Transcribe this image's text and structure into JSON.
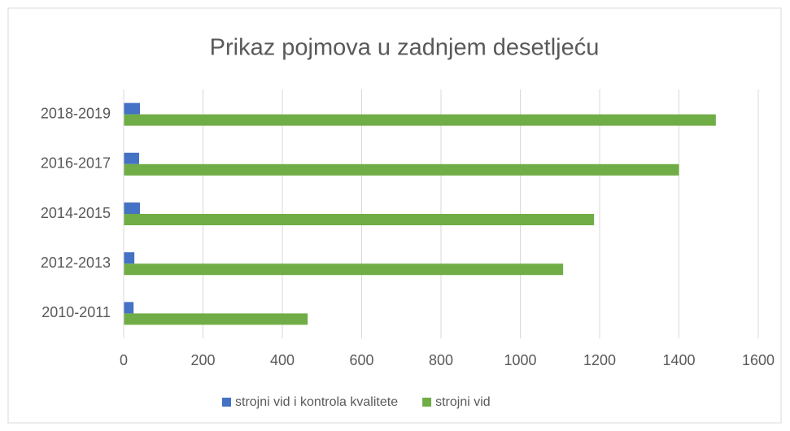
{
  "chart_data": {
    "type": "bar",
    "orientation": "horizontal",
    "title": "Prikaz pojmova u zadnjem desetljeću",
    "categories": [
      "2018-2019",
      "2016-2017",
      "2014-2015",
      "2012-2013",
      "2010-2011"
    ],
    "series": [
      {
        "name": "strojni vid i kontrola kvalitete",
        "color": "#4472c4",
        "values": [
          41,
          39,
          41,
          27,
          25
        ]
      },
      {
        "name": "strojni vid",
        "color": "#70ad47",
        "values": [
          1493,
          1400,
          1186,
          1108,
          464
        ]
      }
    ],
    "xlim": [
      0,
      1600
    ],
    "xticks": [
      0,
      200,
      400,
      600,
      800,
      1000,
      1200,
      1400,
      1600
    ],
    "grid": true,
    "legend": "bottom"
  }
}
